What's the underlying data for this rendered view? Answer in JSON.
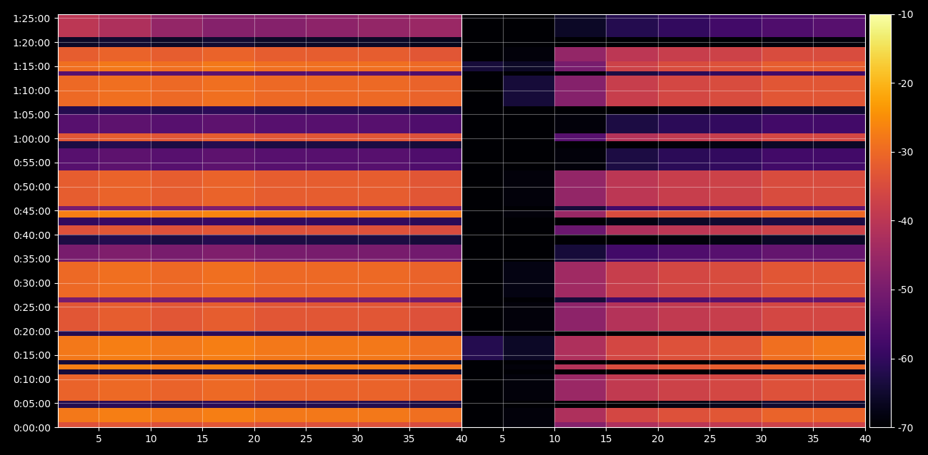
{
  "chart_data": {
    "type": "heatmap",
    "grid": true,
    "ylim": [
      0,
      5150
    ],
    "yticks": [
      {
        "value": 0,
        "label": "0:00:00"
      },
      {
        "value": 300,
        "label": "0:05:00"
      },
      {
        "value": 600,
        "label": "0:10:00"
      },
      {
        "value": 900,
        "label": "0:15:00"
      },
      {
        "value": 1200,
        "label": "0:20:00"
      },
      {
        "value": 1500,
        "label": "0:25:00"
      },
      {
        "value": 1800,
        "label": "0:30:00"
      },
      {
        "value": 2100,
        "label": "0:35:00"
      },
      {
        "value": 2400,
        "label": "0:40:00"
      },
      {
        "value": 2700,
        "label": "0:45:00"
      },
      {
        "value": 3000,
        "label": "0:50:00"
      },
      {
        "value": 3300,
        "label": "0:55:00"
      },
      {
        "value": 3600,
        "label": "1:00:00"
      },
      {
        "value": 3900,
        "label": "1:05:00"
      },
      {
        "value": 4200,
        "label": "1:10:00"
      },
      {
        "value": 4500,
        "label": "1:15:00"
      },
      {
        "value": 4800,
        "label": "1:20:00"
      },
      {
        "value": 5100,
        "label": "1:25:00"
      }
    ],
    "y_edges": [
      0,
      60,
      240,
      330,
      660,
      720,
      780,
      840,
      1140,
      1200,
      1560,
      1620,
      2060,
      2280,
      2400,
      2520,
      2610,
      2700,
      2760,
      3200,
      3480,
      3570,
      3660,
      3900,
      4000,
      4380,
      4440,
      4560,
      4740,
      4860,
      5150
    ],
    "colorbar": {
      "range": [
        -70,
        -10
      ],
      "ticks": [
        -70,
        -60,
        -50,
        -40,
        -30,
        -20,
        -10
      ]
    },
    "panels": [
      {
        "xlim": [
          1,
          40
        ],
        "xticks": [
          5,
          10,
          15,
          20,
          25,
          30,
          35,
          40
        ],
        "x_edges": [
          1,
          5,
          10,
          15,
          20,
          25,
          30,
          35,
          40
        ],
        "cells": [
          [
            -34,
            -33,
            -34,
            -33,
            -34,
            -34,
            -34,
            -35
          ],
          [
            -28,
            -27,
            -28,
            -27,
            -28,
            -28,
            -28,
            -29
          ],
          [
            -62,
            -61,
            -62,
            -61,
            -62,
            -62,
            -62,
            -63
          ],
          [
            -31,
            -30,
            -31,
            -30,
            -31,
            -31,
            -31,
            -32
          ],
          [
            -64,
            -63,
            -64,
            -63,
            -64,
            -64,
            -64,
            -65
          ],
          [
            -27,
            -26,
            -27,
            -26,
            -27,
            -27,
            -27,
            -28
          ],
          [
            -64,
            -63,
            -64,
            -63,
            -64,
            -64,
            -64,
            -65
          ],
          [
            -28,
            -27,
            -28,
            -27,
            -28,
            -28,
            -28,
            -29
          ],
          [
            -62,
            -61,
            -62,
            -61,
            -62,
            -62,
            -62,
            -63
          ],
          [
            -33,
            -32,
            -33,
            -32,
            -33,
            -33,
            -33,
            -34
          ],
          [
            -50,
            -49,
            -50,
            -49,
            -50,
            -50,
            -50,
            -51
          ],
          [
            -30,
            -29,
            -30,
            -29,
            -30,
            -30,
            -30,
            -31
          ],
          [
            -50,
            -49,
            -50,
            -49,
            -50,
            -50,
            -50,
            -51
          ],
          [
            -63,
            -62,
            -63,
            -62,
            -63,
            -63,
            -63,
            -64
          ],
          [
            -34,
            -33,
            -34,
            -33,
            -34,
            -34,
            -34,
            -35
          ],
          [
            -60,
            -59,
            -60,
            -59,
            -60,
            -60,
            -60,
            -61
          ],
          [
            -27,
            -26,
            -27,
            -26,
            -27,
            -27,
            -27,
            -28
          ],
          [
            -50,
            -49,
            -50,
            -49,
            -50,
            -50,
            -50,
            -51
          ],
          [
            -32,
            -31,
            -32,
            -31,
            -32,
            -32,
            -32,
            -33
          ],
          [
            -55,
            -54,
            -55,
            -54,
            -55,
            -55,
            -55,
            -56
          ],
          [
            -63,
            -62,
            -63,
            -62,
            -63,
            -63,
            -63,
            -64
          ],
          [
            -33,
            -32,
            -33,
            -32,
            -33,
            -33,
            -33,
            -34
          ],
          [
            -55,
            -54,
            -55,
            -54,
            -55,
            -55,
            -55,
            -56
          ],
          [
            -62,
            -61,
            -62,
            -61,
            -62,
            -62,
            -62,
            -63
          ],
          [
            -30,
            -29,
            -30,
            -29,
            -30,
            -30,
            -30,
            -31
          ],
          [
            -55,
            -54,
            -55,
            -54,
            -55,
            -55,
            -55,
            -56
          ],
          [
            -29,
            -28,
            -29,
            -28,
            -29,
            -29,
            -29,
            -30
          ],
          [
            -32,
            -31,
            -32,
            -31,
            -32,
            -32,
            -32,
            -33
          ],
          [
            -66,
            -65,
            -66,
            -65,
            -66,
            -66,
            -66,
            -67
          ],
          [
            -40,
            -42,
            -46,
            -48,
            -48,
            -47,
            -46,
            -45
          ]
        ]
      },
      {
        "xlim": [
          1,
          40
        ],
        "xticks": [
          5,
          10,
          15,
          20,
          25,
          30,
          35,
          40
        ],
        "x_edges": [
          1,
          5,
          10,
          15,
          20,
          25,
          30,
          35,
          40
        ],
        "tick_labels": "x",
        "cells": [
          [
            -70,
            -69,
            -48,
            -42,
            -40,
            -39,
            -37,
            -37
          ],
          [
            -70,
            -69,
            -42,
            -36,
            -34,
            -33,
            -31,
            -31
          ],
          [
            -70,
            -70,
            -70,
            -70,
            -68,
            -67,
            -65,
            -65
          ],
          [
            -70,
            -69,
            -45,
            -39,
            -37,
            -36,
            -34,
            -34
          ],
          [
            -70,
            -70,
            -70,
            -70,
            -70,
            -69,
            -67,
            -67
          ],
          [
            -70,
            -69,
            -41,
            -35,
            -33,
            -32,
            -30,
            -30
          ],
          [
            -70,
            -70,
            -70,
            -70,
            -70,
            -69,
            -67,
            -67
          ],
          [
            -62,
            -66,
            -42,
            -36,
            -34,
            -33,
            -29,
            -28
          ],
          [
            -70,
            -70,
            -70,
            -70,
            -68,
            -67,
            -65,
            -65
          ],
          [
            -70,
            -69,
            -47,
            -41,
            -39,
            -38,
            -36,
            -36
          ],
          [
            -70,
            -70,
            -64,
            -58,
            -56,
            -55,
            -53,
            -53
          ],
          [
            -70,
            -68,
            -44,
            -38,
            -36,
            -35,
            -33,
            -33
          ],
          [
            -70,
            -70,
            -64,
            -58,
            -56,
            -55,
            -53,
            -53
          ],
          [
            -70,
            -70,
            -70,
            -70,
            -69,
            -68,
            -66,
            -66
          ],
          [
            -70,
            -70,
            -52,
            -42,
            -40,
            -39,
            -37,
            -37
          ],
          [
            -70,
            -70,
            -70,
            -68,
            -66,
            -65,
            -63,
            -63
          ],
          [
            -70,
            -69,
            -45,
            -35,
            -33,
            -32,
            -30,
            -30
          ],
          [
            -70,
            -70,
            -64,
            -58,
            -56,
            -55,
            -53,
            -53
          ],
          [
            -70,
            -69,
            -46,
            -40,
            -38,
            -37,
            -35,
            -35
          ],
          [
            -70,
            -70,
            -69,
            -63,
            -61,
            -60,
            -58,
            -58
          ],
          [
            -70,
            -70,
            -70,
            -70,
            -69,
            -68,
            -66,
            -66
          ],
          [
            -70,
            -70,
            -55,
            -41,
            -39,
            -38,
            -36,
            -36
          ],
          [
            -70,
            -70,
            -69,
            -63,
            -61,
            -60,
            -58,
            -58
          ],
          [
            -70,
            -70,
            -70,
            -70,
            -68,
            -67,
            -65,
            -65
          ],
          [
            -70,
            -64,
            -48,
            -38,
            -36,
            -35,
            -33,
            -33
          ],
          [
            -70,
            -70,
            -69,
            -63,
            -61,
            -60,
            -58,
            -58
          ],
          [
            -64,
            -66,
            -50,
            -37,
            -35,
            -34,
            -32,
            -32
          ],
          [
            -70,
            -69,
            -46,
            -40,
            -38,
            -37,
            -35,
            -35
          ],
          [
            -70,
            -70,
            -70,
            -70,
            -70,
            -70,
            -69,
            -69
          ],
          [
            -70,
            -70,
            -66,
            -62,
            -60,
            -58,
            -56,
            -55
          ]
        ]
      }
    ]
  }
}
